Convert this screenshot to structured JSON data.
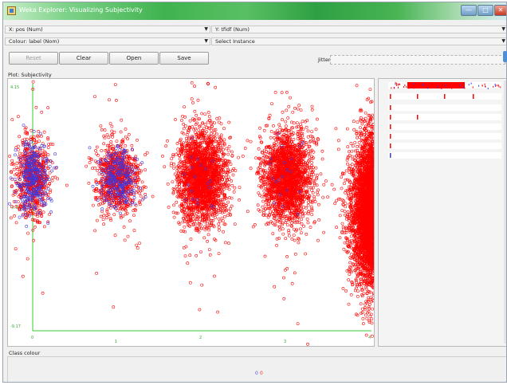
{
  "window": {
    "title": "Weka Explorer: Visualizing Subjectivity"
  },
  "controls": {
    "x_axis": "X: pos (Num)",
    "y_axis": "Y: tfidf (Num)",
    "colour": "Colour: label (Nom)",
    "select_instance": "Select Instance",
    "reset_label": "Reset",
    "clear_label": "Clear",
    "open_label": "Open",
    "save_label": "Save",
    "jitter_label": "Jitter",
    "jitter_value": 0.0
  },
  "plot": {
    "title": "Plot: Subjectivity",
    "y_max_label": "4.15",
    "y_mid_label": "-0.8603",
    "y_min_label": "-9.17",
    "x_tick_labels": [
      "0",
      "1",
      "2",
      "3",
      "4"
    ]
  },
  "class_colour": {
    "label": "Class colour",
    "items": [
      {
        "name": "0",
        "color": "#5a5adc"
      },
      {
        "name": "0",
        "color": "#e83a3a"
      }
    ]
  },
  "colors": {
    "red_class": "#ff0000",
    "blue_class": "#3a3ae0",
    "axis": "#33cc33"
  },
  "chart_data": {
    "type": "scatter",
    "title": "Plot: Subjectivity",
    "xlabel": "pos",
    "ylabel": "tfidf",
    "xlim": [
      0,
      4
    ],
    "ylim": [
      -9.17,
      4.15
    ],
    "clusters": [
      {
        "x": 0,
        "y_center": -0.86,
        "red_points": 700,
        "blue_points": 320
      },
      {
        "x": 1,
        "y_center": -0.86,
        "red_points": 900,
        "blue_points": 260
      },
      {
        "x": 2,
        "y_center": -0.86,
        "red_points": 2400,
        "blue_points": 20
      },
      {
        "x": 3,
        "y_center": -0.86,
        "red_points": 2200,
        "blue_points": 20
      },
      {
        "x": 4,
        "y_center": -2.2,
        "red_points": 4200,
        "blue_points": 0
      }
    ]
  }
}
